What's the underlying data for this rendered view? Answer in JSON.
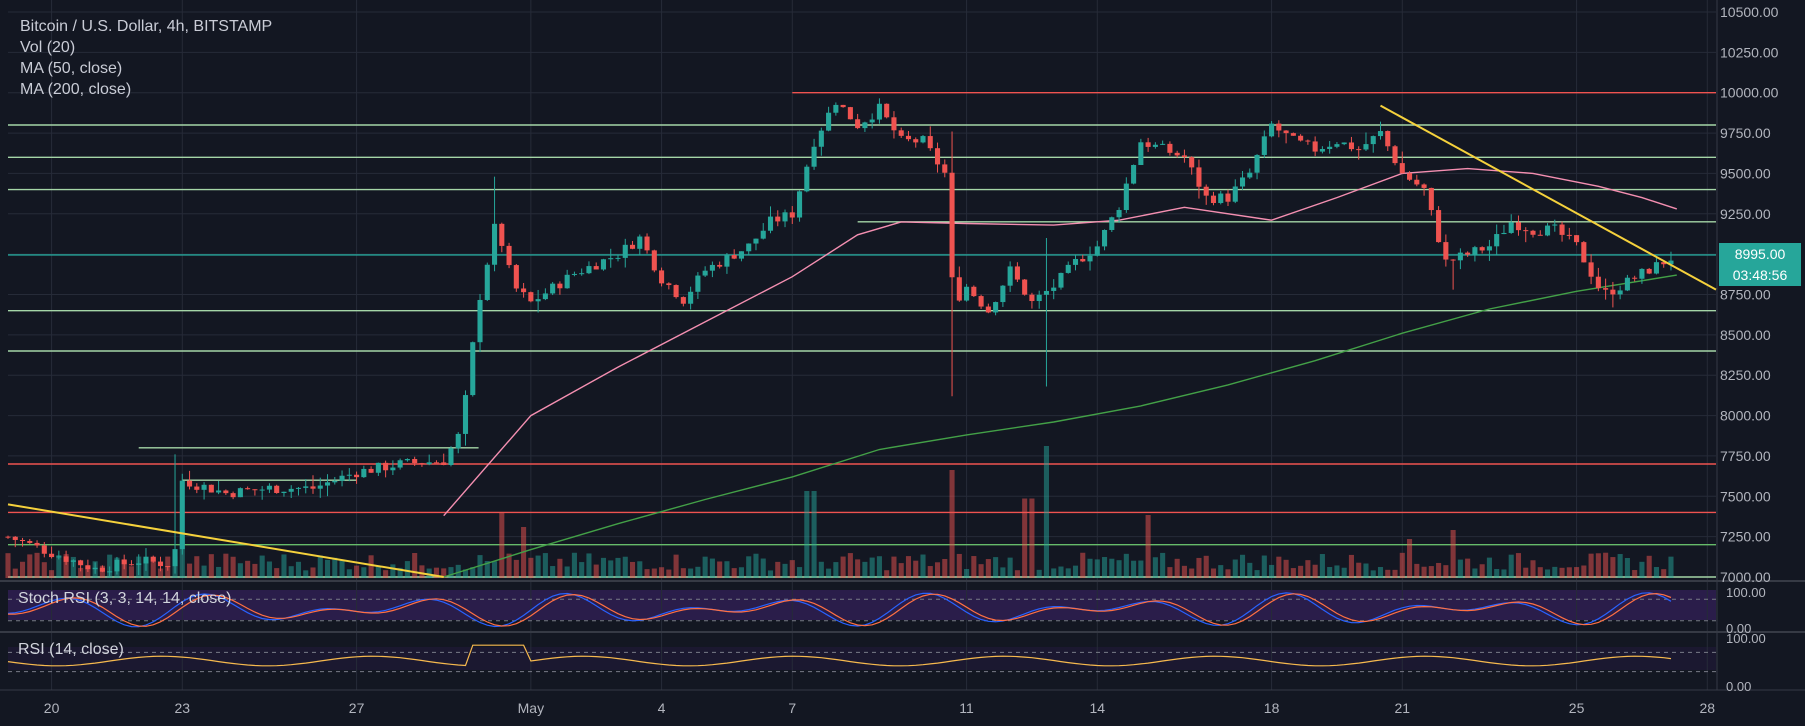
{
  "chart_data": {
    "type": "candlestick",
    "title": "Bitcoin / U.S. Dollar, 4h, BITSTAMP",
    "indicators": [
      "Vol (20)",
      "MA (50, close)",
      "MA (200, close)"
    ],
    "last_price_label": "8995.00",
    "countdown": "03:48:56",
    "price_axis": {
      "ticks": [
        "10500.00",
        "10250.00",
        "10000.00",
        "9750.00",
        "9500.00",
        "9250.00",
        "9000.00",
        "8750.00",
        "8500.00",
        "8250.00",
        "8000.00",
        "7750.00",
        "7500.00",
        "7250.00",
        "7000.00"
      ],
      "ylim": [
        7000,
        10500
      ]
    },
    "x_axis": {
      "ticks": [
        "20",
        "23",
        "27",
        "May",
        "4",
        "7",
        "11",
        "14",
        "18",
        "21",
        "25",
        "28"
      ],
      "tick_days": [
        -11,
        -8,
        -4,
        0,
        3,
        6,
        10,
        13,
        17,
        20,
        24,
        27
      ],
      "day_range": [
        -12,
        27.2
      ]
    },
    "horizontal_levels": [
      {
        "price": 10000,
        "color": "#ef5350",
        "from_day": 6
      },
      {
        "price": 9800,
        "color": "#a5d6a7"
      },
      {
        "price": 9600,
        "color": "#a5d6a7"
      },
      {
        "price": 9400,
        "color": "#a5d6a7"
      },
      {
        "price": 9200,
        "color": "#a5d6a7",
        "from_day": 7.5
      },
      {
        "price": 8995,
        "color": "#26a69a"
      },
      {
        "price": 8650,
        "color": "#a5d6a7"
      },
      {
        "price": 8400,
        "color": "#a5d6a7"
      },
      {
        "price": 7800,
        "color": "#a5d6a7",
        "from_day": -9,
        "to_day": -1.2
      },
      {
        "price": 7600,
        "color": "#a5d6a7",
        "from_day": -8,
        "to_day": -4
      },
      {
        "price": 7700,
        "color": "#ef5350"
      },
      {
        "price": 7400,
        "color": "#ef5350"
      },
      {
        "price": 7200,
        "color": "#66bb6a"
      },
      {
        "price": 7000,
        "color": "#a5d6a7"
      }
    ],
    "trendlines": [
      {
        "from": [
          -12,
          7450
        ],
        "to": [
          -2,
          7000
        ],
        "color": "#f5d13c"
      },
      {
        "from": [
          19.5,
          9920
        ],
        "to": [
          27.2,
          8780
        ],
        "color": "#f5d13c"
      }
    ],
    "anchors": [
      {
        "day": -12,
        "price": 7250
      },
      {
        "day": -11,
        "price": 7150
      },
      {
        "day": -10,
        "price": 7050
      },
      {
        "day": -9,
        "price": 7100
      },
      {
        "day": -8.2,
        "price": 7080
      },
      {
        "day": -8,
        "price": 7600
      },
      {
        "day": -7,
        "price": 7520
      },
      {
        "day": -6,
        "price": 7550
      },
      {
        "day": -5,
        "price": 7550
      },
      {
        "day": -4,
        "price": 7650
      },
      {
        "day": -3,
        "price": 7700
      },
      {
        "day": -2,
        "price": 7720
      },
      {
        "day": -1.6,
        "price": 7900
      },
      {
        "day": -1.2,
        "price": 8700
      },
      {
        "day": -0.8,
        "price": 9200
      },
      {
        "day": -0.4,
        "price": 8800
      },
      {
        "day": 0,
        "price": 8700
      },
      {
        "day": 1,
        "price": 8880
      },
      {
        "day": 2,
        "price": 9000
      },
      {
        "day": 2.5,
        "price": 9100
      },
      {
        "day": 3,
        "price": 8850
      },
      {
        "day": 3.5,
        "price": 8720
      },
      {
        "day": 4,
        "price": 8900
      },
      {
        "day": 5,
        "price": 9050
      },
      {
        "day": 5.5,
        "price": 9200
      },
      {
        "day": 6,
        "price": 9250
      },
      {
        "day": 6.5,
        "price": 9700
      },
      {
        "day": 7,
        "price": 9950
      },
      {
        "day": 7.5,
        "price": 9800
      },
      {
        "day": 8,
        "price": 9900
      },
      {
        "day": 8.5,
        "price": 9700
      },
      {
        "day": 9,
        "price": 9700
      },
      {
        "day": 9.5,
        "price": 9500
      },
      {
        "day": 9.7,
        "price": 8700
      },
      {
        "day": 10,
        "price": 8800
      },
      {
        "day": 10.5,
        "price": 8650
      },
      {
        "day": 11,
        "price": 8900
      },
      {
        "day": 11.5,
        "price": 8700
      },
      {
        "day": 12,
        "price": 8800
      },
      {
        "day": 12.5,
        "price": 8950
      },
      {
        "day": 13,
        "price": 9050
      },
      {
        "day": 13.5,
        "price": 9300
      },
      {
        "day": 14,
        "price": 9700
      },
      {
        "day": 14.5,
        "price": 9650
      },
      {
        "day": 15,
        "price": 9600
      },
      {
        "day": 15.5,
        "price": 9350
      },
      {
        "day": 16,
        "price": 9350
      },
      {
        "day": 16.5,
        "price": 9500
      },
      {
        "day": 17,
        "price": 9800
      },
      {
        "day": 17.5,
        "price": 9700
      },
      {
        "day": 18,
        "price": 9650
      },
      {
        "day": 18.5,
        "price": 9700
      },
      {
        "day": 19,
        "price": 9650
      },
      {
        "day": 19.5,
        "price": 9750
      },
      {
        "day": 20,
        "price": 9500
      },
      {
        "day": 20.5,
        "price": 9400
      },
      {
        "day": 21,
        "price": 8950
      },
      {
        "day": 21.5,
        "price": 9000
      },
      {
        "day": 22,
        "price": 9050
      },
      {
        "day": 22.5,
        "price": 9200
      },
      {
        "day": 23,
        "price": 9150
      },
      {
        "day": 23.5,
        "price": 9150
      },
      {
        "day": 24,
        "price": 9050
      },
      {
        "day": 24.3,
        "price": 8900
      },
      {
        "day": 24.6,
        "price": 8750
      },
      {
        "day": 25,
        "price": 8800
      },
      {
        "day": 25.5,
        "price": 8880
      },
      {
        "day": 26.3,
        "price": 8995
      }
    ],
    "spikes": [
      {
        "day": 9.7,
        "low": 8120,
        "high": 9760
      },
      {
        "day": 11.8,
        "low": 8180,
        "high": 9100
      },
      {
        "day": -0.8,
        "high": 9480
      },
      {
        "day": 21.2,
        "low": 8780
      },
      {
        "day": 24.8,
        "low": 8670
      },
      {
        "day": -8.1,
        "high": 7760
      }
    ],
    "ma50": [
      [
        -2,
        7380
      ],
      [
        0,
        8000
      ],
      [
        2,
        8300
      ],
      [
        4,
        8580
      ],
      [
        6,
        8860
      ],
      [
        7.5,
        9120
      ],
      [
        8.5,
        9200
      ],
      [
        10,
        9190
      ],
      [
        12,
        9180
      ],
      [
        13.5,
        9210
      ],
      [
        15,
        9290
      ],
      [
        17,
        9210
      ],
      [
        18.5,
        9350
      ],
      [
        20,
        9500
      ],
      [
        21.5,
        9530
      ],
      [
        23,
        9500
      ],
      [
        24.5,
        9420
      ],
      [
        25.5,
        9350
      ],
      [
        26.3,
        9280
      ]
    ],
    "ma200": [
      [
        -2,
        7000
      ],
      [
        0,
        7170
      ],
      [
        2,
        7330
      ],
      [
        4,
        7480
      ],
      [
        6,
        7620
      ],
      [
        8,
        7790
      ],
      [
        10,
        7880
      ],
      [
        12,
        7960
      ],
      [
        14,
        8060
      ],
      [
        16,
        8190
      ],
      [
        18,
        8340
      ],
      [
        20,
        8510
      ],
      [
        22,
        8660
      ],
      [
        24,
        8770
      ],
      [
        26.3,
        8870
      ]
    ],
    "volume": {
      "peaks": [
        {
          "day": 9.7,
          "value": 0.72
        },
        {
          "day": 11.8,
          "value": 0.88
        },
        {
          "day": 11.4,
          "value": 0.53
        },
        {
          "day": -0.7,
          "value": 0.44
        },
        {
          "day": -0.2,
          "value": 0.34
        },
        {
          "day": 6.4,
          "value": 0.58
        },
        {
          "day": 14.1,
          "value": 0.42
        },
        {
          "day": 20.1,
          "value": 0.26
        },
        {
          "day": 21.2,
          "value": 0.32
        },
        {
          "day": -8.0,
          "value": 0.26
        }
      ]
    },
    "stoch_rsi": {
      "label": "Stoch RSI (3, 3, 14, 14, close)",
      "ticks": [
        "100.00",
        "0.00"
      ],
      "ylim": [
        0,
        100
      ]
    },
    "rsi": {
      "label": "RSI (14, close)",
      "ticks": [
        "100.00",
        "0.00"
      ],
      "ylim": [
        0,
        100
      ]
    },
    "colors": {
      "up": "#26a69a",
      "down": "#ef5350",
      "ma50": "#f48fb1",
      "ma200": "#43a047",
      "stoch_k": "#2962ff",
      "stoch_d": "#ff7043",
      "rsi": "#f6b94e",
      "trend": "#f5d13c"
    }
  }
}
